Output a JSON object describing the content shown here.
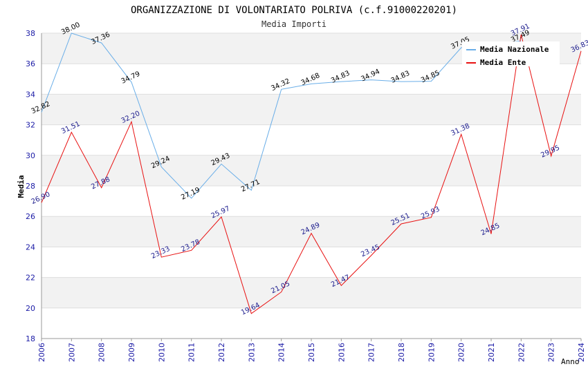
{
  "chart_data": {
    "type": "line",
    "title": "ORGANIZZAZIONE DI VOLONTARIATO POLRIVA (c.f.91000220201)",
    "subtitle": "Media Importi",
    "xlabel": "Anno",
    "ylabel": "Media",
    "ylim": [
      18,
      38
    ],
    "yticks": [
      18,
      20,
      22,
      24,
      26,
      28,
      30,
      32,
      34,
      36,
      38
    ],
    "categories": [
      "2006",
      "2007",
      "2008",
      "2009",
      "2010",
      "2011",
      "2012",
      "2013",
      "2014",
      "2015",
      "2016",
      "2017",
      "2018",
      "2019",
      "2020",
      "2021",
      "2022",
      "2023",
      "2024"
    ],
    "series": [
      {
        "name": "Media Nazionale",
        "color": "#6aaee8",
        "values": [
          32.82,
          38.0,
          37.36,
          34.79,
          29.24,
          27.19,
          29.43,
          27.71,
          34.32,
          34.68,
          34.83,
          34.94,
          34.83,
          34.85,
          37.05,
          null,
          37.49,
          null,
          null
        ],
        "labels": [
          "32.82",
          "38.00",
          "37.36",
          "34.79",
          "29.24",
          "27.19",
          "29.43",
          "27.71",
          "34.32",
          "34.68",
          "34.83",
          "34.94",
          "34.83",
          "34.85",
          "37.05",
          null,
          "37.49",
          null,
          null
        ]
      },
      {
        "name": "Media Ente",
        "color": "#e81010",
        "values": [
          26.9,
          31.51,
          27.88,
          32.2,
          23.33,
          23.78,
          25.97,
          19.64,
          21.05,
          24.89,
          21.47,
          23.45,
          25.51,
          25.93,
          31.38,
          24.85,
          37.91,
          29.95,
          36.83
        ],
        "labels": [
          "26.90",
          "31.51",
          "27.88",
          "32.20",
          "23.33",
          "23.78",
          "25.97",
          "19.64",
          "21.05",
          "24.89",
          "21.47",
          "23.45",
          "25.51",
          "25.93",
          "31.38",
          "24.85",
          "37.91",
          "29.95",
          "36.83"
        ]
      }
    ],
    "legend": {
      "position": "top-right"
    },
    "grid": true
  }
}
